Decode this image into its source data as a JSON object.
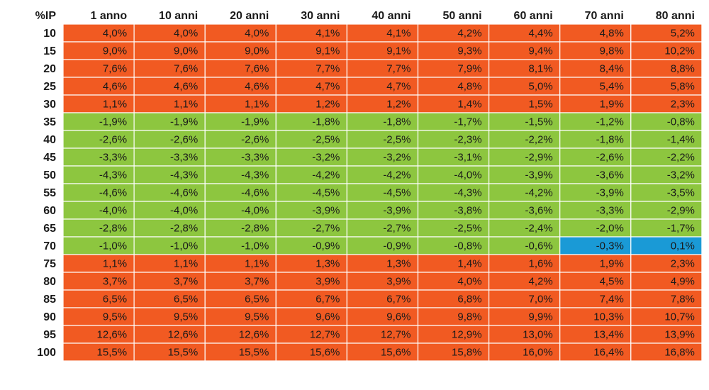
{
  "chart_data": {
    "type": "heatmap",
    "corner_label": "%IP",
    "columns": [
      "1 anno",
      "10 anni",
      "20 anni",
      "30 anni",
      "40 anni",
      "50 anni",
      "60 anni",
      "70 anni",
      "80 anni"
    ],
    "rows": [
      "10",
      "15",
      "20",
      "25",
      "30",
      "35",
      "40",
      "45",
      "50",
      "55",
      "60",
      "65",
      "70",
      "75",
      "80",
      "85",
      "90",
      "95",
      "100"
    ],
    "values": [
      [
        "4,0%",
        "4,0%",
        "4,0%",
        "4,1%",
        "4,1%",
        "4,2%",
        "4,4%",
        "4,8%",
        "5,2%"
      ],
      [
        "9,0%",
        "9,0%",
        "9,0%",
        "9,1%",
        "9,1%",
        "9,3%",
        "9,4%",
        "9,8%",
        "10,2%"
      ],
      [
        "7,6%",
        "7,6%",
        "7,6%",
        "7,7%",
        "7,7%",
        "7,9%",
        "8,1%",
        "8,4%",
        "8,8%"
      ],
      [
        "4,6%",
        "4,6%",
        "4,6%",
        "4,7%",
        "4,7%",
        "4,8%",
        "5,0%",
        "5,4%",
        "5,8%"
      ],
      [
        "1,1%",
        "1,1%",
        "1,1%",
        "1,2%",
        "1,2%",
        "1,4%",
        "1,5%",
        "1,9%",
        "2,3%"
      ],
      [
        "-1,9%",
        "-1,9%",
        "-1,9%",
        "-1,8%",
        "-1,8%",
        "-1,7%",
        "-1,5%",
        "-1,2%",
        "-0,8%"
      ],
      [
        "-2,6%",
        "-2,6%",
        "-2,6%",
        "-2,5%",
        "-2,5%",
        "-2,3%",
        "-2,2%",
        "-1,8%",
        "-1,4%"
      ],
      [
        "-3,3%",
        "-3,3%",
        "-3,3%",
        "-3,2%",
        "-3,2%",
        "-3,1%",
        "-2,9%",
        "-2,6%",
        "-2,2%"
      ],
      [
        "-4,3%",
        "-4,3%",
        "-4,3%",
        "-4,2%",
        "-4,2%",
        "-4,0%",
        "-3,9%",
        "-3,6%",
        "-3,2%"
      ],
      [
        "-4,6%",
        "-4,6%",
        "-4,6%",
        "-4,5%",
        "-4,5%",
        "-4,3%",
        "-4,2%",
        "-3,9%",
        "-3,5%"
      ],
      [
        "-4,0%",
        "-4,0%",
        "-4,0%",
        "-3,9%",
        "-3,9%",
        "-3,8%",
        "-3,6%",
        "-3,3%",
        "-2,9%"
      ],
      [
        "-2,8%",
        "-2,8%",
        "-2,8%",
        "-2,7%",
        "-2,7%",
        "-2,5%",
        "-2,4%",
        "-2,0%",
        "-1,7%"
      ],
      [
        "-1,0%",
        "-1,0%",
        "-1,0%",
        "-0,9%",
        "-0,9%",
        "-0,8%",
        "-0,6%",
        "-0,3%",
        "0,1%"
      ],
      [
        "1,1%",
        "1,1%",
        "1,1%",
        "1,3%",
        "1,3%",
        "1,4%",
        "1,6%",
        "1,9%",
        "2,3%"
      ],
      [
        "3,7%",
        "3,7%",
        "3,7%",
        "3,9%",
        "3,9%",
        "4,0%",
        "4,2%",
        "4,5%",
        "4,9%"
      ],
      [
        "6,5%",
        "6,5%",
        "6,5%",
        "6,7%",
        "6,7%",
        "6,8%",
        "7,0%",
        "7,4%",
        "7,8%"
      ],
      [
        "9,5%",
        "9,5%",
        "9,5%",
        "9,6%",
        "9,6%",
        "9,8%",
        "9,9%",
        "10,3%",
        "10,7%"
      ],
      [
        "12,6%",
        "12,6%",
        "12,6%",
        "12,7%",
        "12,7%",
        "12,9%",
        "13,0%",
        "13,4%",
        "13,9%"
      ],
      [
        "15,5%",
        "15,5%",
        "15,5%",
        "15,6%",
        "15,6%",
        "15,8%",
        "16,0%",
        "16,4%",
        "16,8%"
      ]
    ],
    "highlighted_cells": [
      [
        12,
        7
      ],
      [
        12,
        8
      ]
    ],
    "colors": {
      "positive": "#f15a22",
      "negative": "#8dc63f",
      "highlight": "#1a9ad6",
      "text": "#1a1a1a",
      "grid": "#ffffff"
    }
  }
}
